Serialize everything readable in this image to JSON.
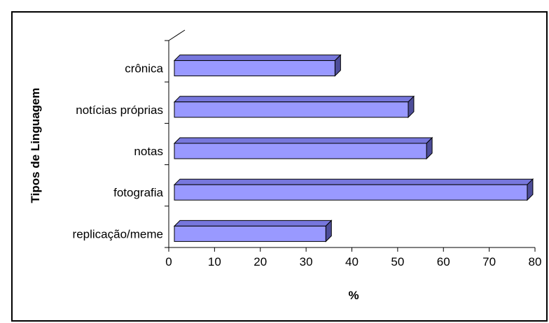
{
  "chart_data": {
    "type": "bar",
    "orientation": "horizontal",
    "style": "3d",
    "categories": [
      "crônica",
      "notícias próprias",
      "notas",
      "fotografia",
      "replicação/meme"
    ],
    "values": [
      36,
      52,
      56,
      78,
      34
    ],
    "xlabel": "%",
    "ylabel": "Tipos de Linguagem",
    "xlim": [
      0,
      80
    ],
    "xticks": [
      "0",
      "10",
      "20",
      "30",
      "40",
      "50",
      "60",
      "70",
      "80"
    ],
    "grid": false,
    "bar_color": "#9999ff",
    "bar_top_color": "#7777dd",
    "bar_side_color": "#4d4d99"
  }
}
